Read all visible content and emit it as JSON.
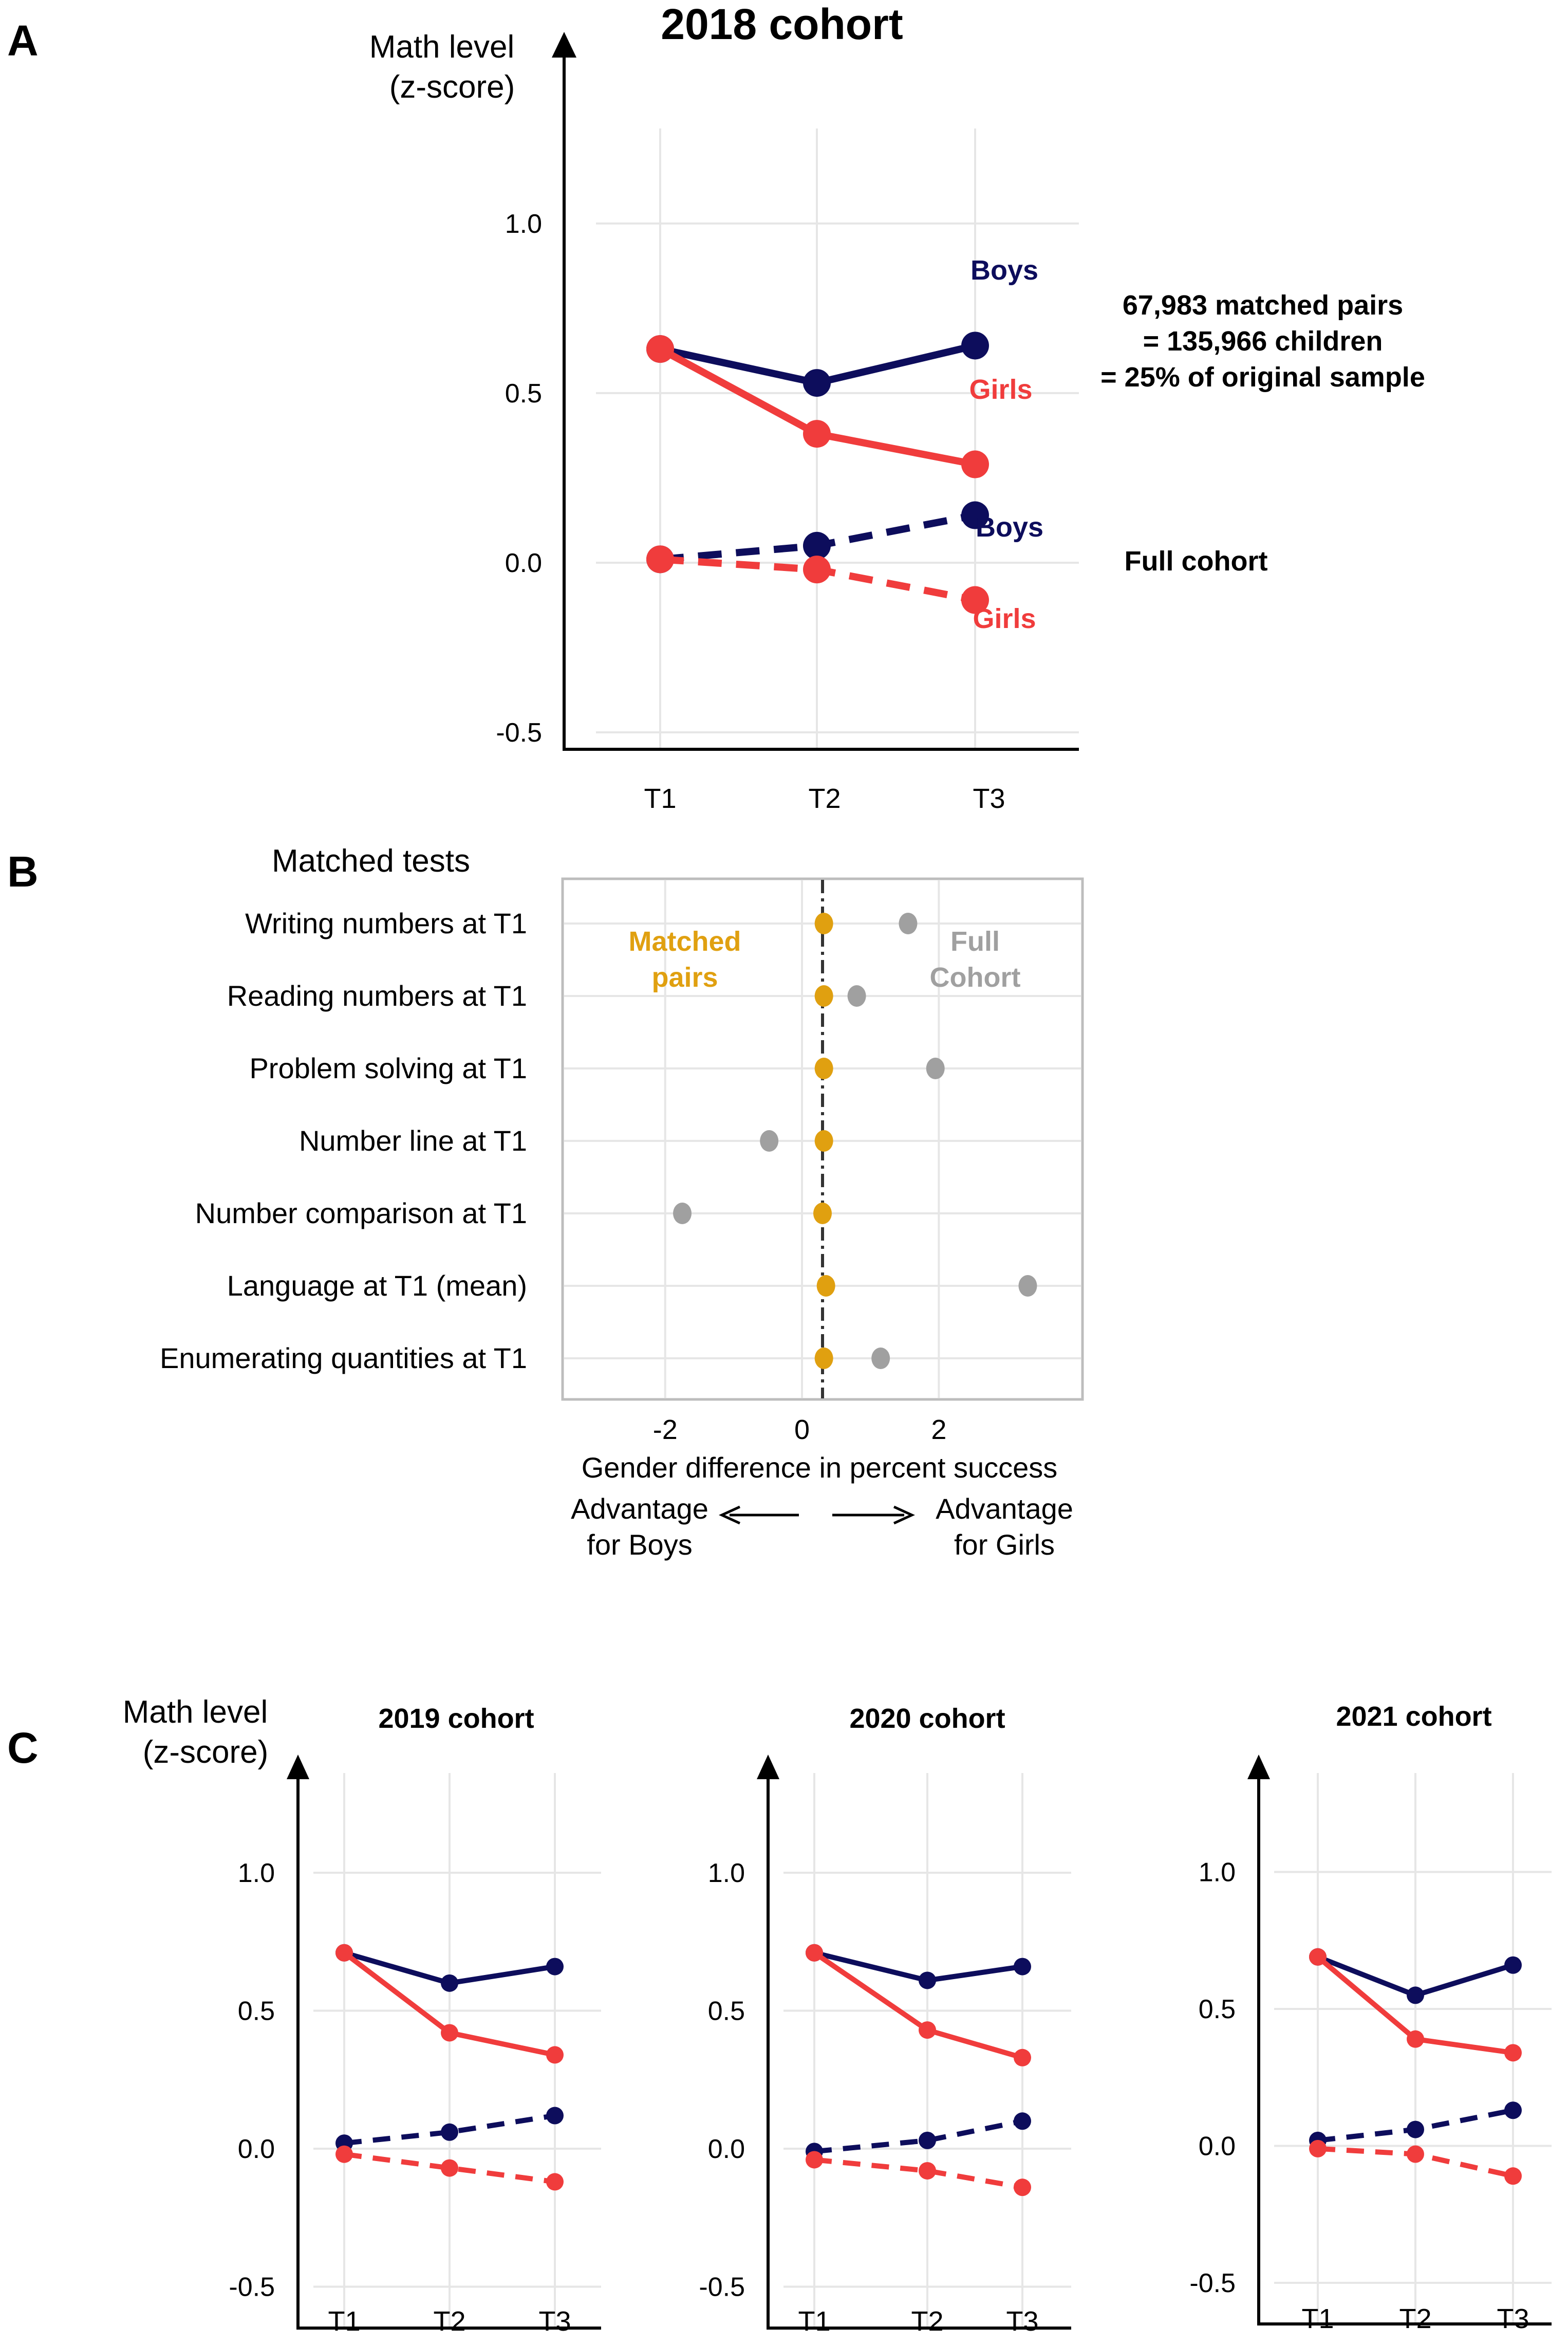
{
  "colors": {
    "boys": "#0d0d5c",
    "girls": "#f03c3c",
    "matched_pairs": "#e0a010",
    "full_cohort": "#a0a0a0",
    "grid": "#e6e6e6",
    "axis": "#000000"
  },
  "panel_letters": {
    "a": "A",
    "b": "B",
    "c": "C"
  },
  "chart_data": [
    {
      "id": "A",
      "type": "line",
      "title": "2018 cohort",
      "ylabel_line1": "Math level",
      "ylabel_line2": "(z-score)",
      "categories": [
        "T1",
        "T2",
        "T3"
      ],
      "ylim": [
        -0.55,
        1.28
      ],
      "yticks": [
        "1.0",
        "0.5",
        "0.0",
        "-0.5"
      ],
      "grid": true,
      "series": [
        {
          "name": "Boys",
          "group": "matched",
          "style": "solid",
          "values": [
            0.63,
            0.53,
            0.64
          ]
        },
        {
          "name": "Girls",
          "group": "matched",
          "style": "solid",
          "values": [
            0.63,
            0.38,
            0.29
          ]
        },
        {
          "name": "Boys",
          "group": "full",
          "style": "dashed",
          "values": [
            0.01,
            0.05,
            0.14
          ]
        },
        {
          "name": "Girls",
          "group": "full",
          "style": "dashed",
          "values": [
            0.01,
            -0.02,
            -0.11
          ]
        }
      ],
      "annotations": {
        "matched_line1": "67,983 matched pairs",
        "matched_line2": "= 135,966 children",
        "matched_line3": "= 25% of original sample",
        "full_cohort": "Full cohort"
      }
    },
    {
      "id": "B",
      "type": "scatter",
      "title": "Matched tests",
      "xlabel": "Gender difference in percent success",
      "xticks": [
        "-2",
        "0",
        "2"
      ],
      "xlim": [
        -3.5,
        4.1
      ],
      "reference_line": 0.3,
      "grid": true,
      "categories": [
        "Writing numbers at T1",
        "Reading numbers at T1",
        "Problem solving at T1",
        "Number line at T1",
        "Number comparison at T1",
        "Language at T1 (mean)",
        "Enumerating quantities at T1"
      ],
      "series": [
        {
          "name_line1": "Matched",
          "name_line2": "pairs",
          "values": [
            0.32,
            0.32,
            0.32,
            0.32,
            0.3,
            0.35,
            0.32
          ]
        },
        {
          "name_line1": "Full",
          "name_line2": "Cohort",
          "values": [
            1.55,
            0.8,
            1.95,
            -0.48,
            -1.75,
            3.3,
            1.15
          ]
        }
      ],
      "arrows": {
        "left_line1": "Advantage",
        "left_line2": "for Boys",
        "right_line1": "Advantage",
        "right_line2": "for Girls"
      }
    },
    {
      "id": "C1",
      "type": "line",
      "title": "2019 cohort",
      "ylabel_line1": "Math level",
      "ylabel_line2": "(z-score)",
      "categories": [
        "T1",
        "T2",
        "T3"
      ],
      "ylim": [
        -0.65,
        1.38
      ],
      "yticks": [
        "1.0",
        "0.5",
        "0.0",
        "-0.5"
      ],
      "grid": true,
      "series": [
        {
          "name": "Boys",
          "group": "matched",
          "style": "solid",
          "values": [
            0.71,
            0.6,
            0.66
          ]
        },
        {
          "name": "Girls",
          "group": "matched",
          "style": "solid",
          "values": [
            0.71,
            0.42,
            0.34
          ]
        },
        {
          "name": "Boys",
          "group": "full",
          "style": "dashed",
          "values": [
            0.02,
            0.06,
            0.12
          ]
        },
        {
          "name": "Girls",
          "group": "full",
          "style": "dashed",
          "values": [
            -0.02,
            -0.07,
            -0.12
          ]
        }
      ]
    },
    {
      "id": "C2",
      "type": "line",
      "title": "2020 cohort",
      "categories": [
        "T1",
        "T2",
        "T3"
      ],
      "ylim": [
        -0.65,
        1.38
      ],
      "yticks": [
        "1.0",
        "0.5",
        "0.0",
        "-0.5"
      ],
      "grid": true,
      "series": [
        {
          "name": "Boys",
          "group": "matched",
          "style": "solid",
          "values": [
            0.71,
            0.61,
            0.66
          ]
        },
        {
          "name": "Girls",
          "group": "matched",
          "style": "solid",
          "values": [
            0.71,
            0.43,
            0.33
          ]
        },
        {
          "name": "Boys",
          "group": "full",
          "style": "dashed",
          "values": [
            -0.01,
            0.03,
            0.1
          ]
        },
        {
          "name": "Girls",
          "group": "full",
          "style": "dashed",
          "values": [
            -0.04,
            -0.08,
            -0.14
          ]
        }
      ]
    },
    {
      "id": "C3",
      "type": "line",
      "title": "2021 cohort",
      "categories": [
        "T1",
        "T2",
        "T3"
      ],
      "ylim": [
        -0.65,
        1.38
      ],
      "yticks": [
        "1.0",
        "0.5",
        "0.0",
        "-0.5"
      ],
      "grid": true,
      "series": [
        {
          "name": "Boys",
          "group": "matched",
          "style": "solid",
          "values": [
            0.69,
            0.55,
            0.66
          ]
        },
        {
          "name": "Girls",
          "group": "matched",
          "style": "solid",
          "values": [
            0.69,
            0.39,
            0.34
          ]
        },
        {
          "name": "Boys",
          "group": "full",
          "style": "dashed",
          "values": [
            0.02,
            0.06,
            0.13
          ]
        },
        {
          "name": "Girls",
          "group": "full",
          "style": "dashed",
          "values": [
            -0.01,
            -0.03,
            -0.11
          ]
        }
      ]
    }
  ]
}
